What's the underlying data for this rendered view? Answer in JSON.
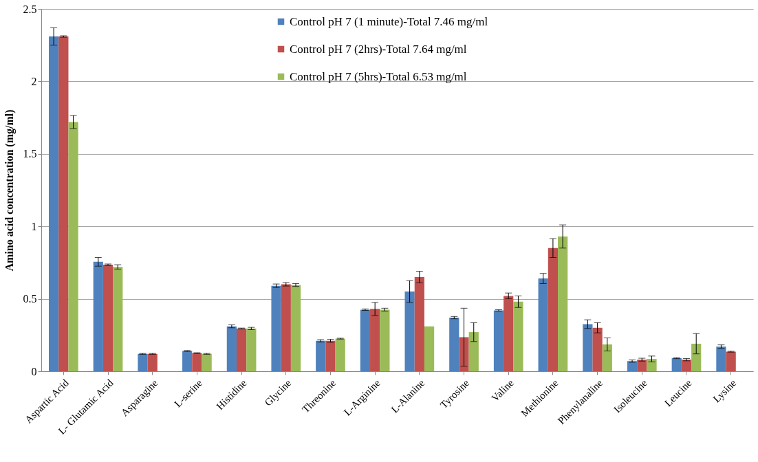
{
  "chart_data": {
    "type": "bar",
    "ylabel": "Amino acid concentration (mg/ml)",
    "categories": [
      "Aspartic Acid",
      "L- Glutamic Acid",
      "Asparagine",
      "L-serine",
      "Histidine",
      "Glycine",
      "Threonine",
      "L-Arginine",
      "L-Alanine",
      "Tyrosine",
      "Valine",
      "Methionine",
      "Phenylanaline",
      "Isoleucine",
      "Leucine",
      "Lysine"
    ],
    "series": [
      {
        "name": "Control pH 7 (1 minute)-Total 7.46 mg/ml",
        "color": "#4f81bd",
        "values": [
          2.31,
          0.755,
          0.12,
          0.14,
          0.31,
          0.59,
          0.21,
          0.425,
          0.55,
          0.37,
          0.42,
          0.64,
          0.325,
          0.07,
          0.09,
          0.17
        ],
        "errors": [
          0.06,
          0.03,
          0.003,
          0.003,
          0.01,
          0.012,
          0.008,
          0.005,
          0.075,
          0.008,
          0.005,
          0.035,
          0.03,
          0.008,
          0.003,
          0.012
        ]
      },
      {
        "name": "Control pH 7 (2hrs)-Total 7.64 mg/ml",
        "color": "#c0504d",
        "values": [
          2.31,
          0.735,
          0.12,
          0.125,
          0.295,
          0.6,
          0.21,
          0.43,
          0.65,
          0.235,
          0.52,
          0.85,
          0.3,
          0.08,
          0.08,
          0.135
        ],
        "errors": [
          0.005,
          0.005,
          0.003,
          0.003,
          0.003,
          0.012,
          0.01,
          0.045,
          0.04,
          0.2,
          0.02,
          0.065,
          0.035,
          0.01,
          0.008,
          0.003
        ]
      },
      {
        "name": "Control pH 7 (5hrs)-Total 6.53 mg/ml",
        "color": "#9bbb59",
        "values": [
          1.72,
          0.72,
          null,
          0.12,
          0.295,
          0.595,
          0.225,
          0.425,
          0.31,
          0.27,
          0.48,
          0.93,
          0.185,
          0.085,
          0.19,
          null
        ],
        "errors": [
          0.045,
          0.015,
          null,
          0.003,
          0.008,
          0.01,
          0.003,
          0.01,
          null,
          0.065,
          0.04,
          0.08,
          0.045,
          0.02,
          0.07,
          null
        ]
      }
    ],
    "ylim": [
      0,
      2.5
    ],
    "yticks": [
      0,
      0.5,
      1,
      1.5,
      2,
      2.5
    ],
    "grid": "y",
    "legend": "top"
  }
}
